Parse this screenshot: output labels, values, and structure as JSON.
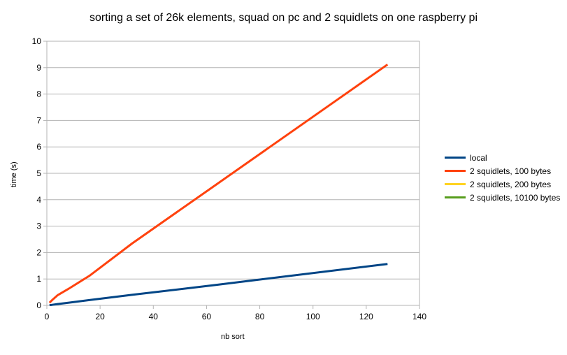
{
  "chart_data": {
    "type": "line",
    "title": "sorting a set of 26k elements, squad on pc and 2 squidlets on one raspberry pi",
    "xlabel": "nb sort",
    "ylabel": "time (s)",
    "xlim": [
      0,
      140
    ],
    "ylim": [
      0,
      10
    ],
    "x_ticks": [
      0,
      20,
      40,
      60,
      80,
      100,
      120,
      140
    ],
    "y_ticks": [
      0,
      1,
      2,
      3,
      4,
      5,
      6,
      7,
      8,
      9,
      10
    ],
    "grid": true,
    "legend_position": "right",
    "series": [
      {
        "name": "local",
        "color": "#004586",
        "x": [
          1,
          2,
          4,
          8,
          16,
          32,
          64,
          128
        ],
        "y": [
          0.01,
          0.02,
          0.05,
          0.1,
          0.2,
          0.4,
          0.78,
          1.57
        ]
      },
      {
        "name": "2 squidlets, 100 bytes",
        "color": "#ff420e",
        "x": [
          1,
          2,
          4,
          8,
          16,
          32,
          64,
          128
        ],
        "y": [
          0.1,
          0.2,
          0.38,
          0.62,
          1.12,
          2.34,
          4.6,
          9.12
        ]
      },
      {
        "name": "2 squidlets, 200 bytes",
        "color": "#ffd320",
        "x": [],
        "y": []
      },
      {
        "name": "2 squidlets, 10100 bytes",
        "color": "#579d1c",
        "x": [],
        "y": []
      }
    ]
  }
}
